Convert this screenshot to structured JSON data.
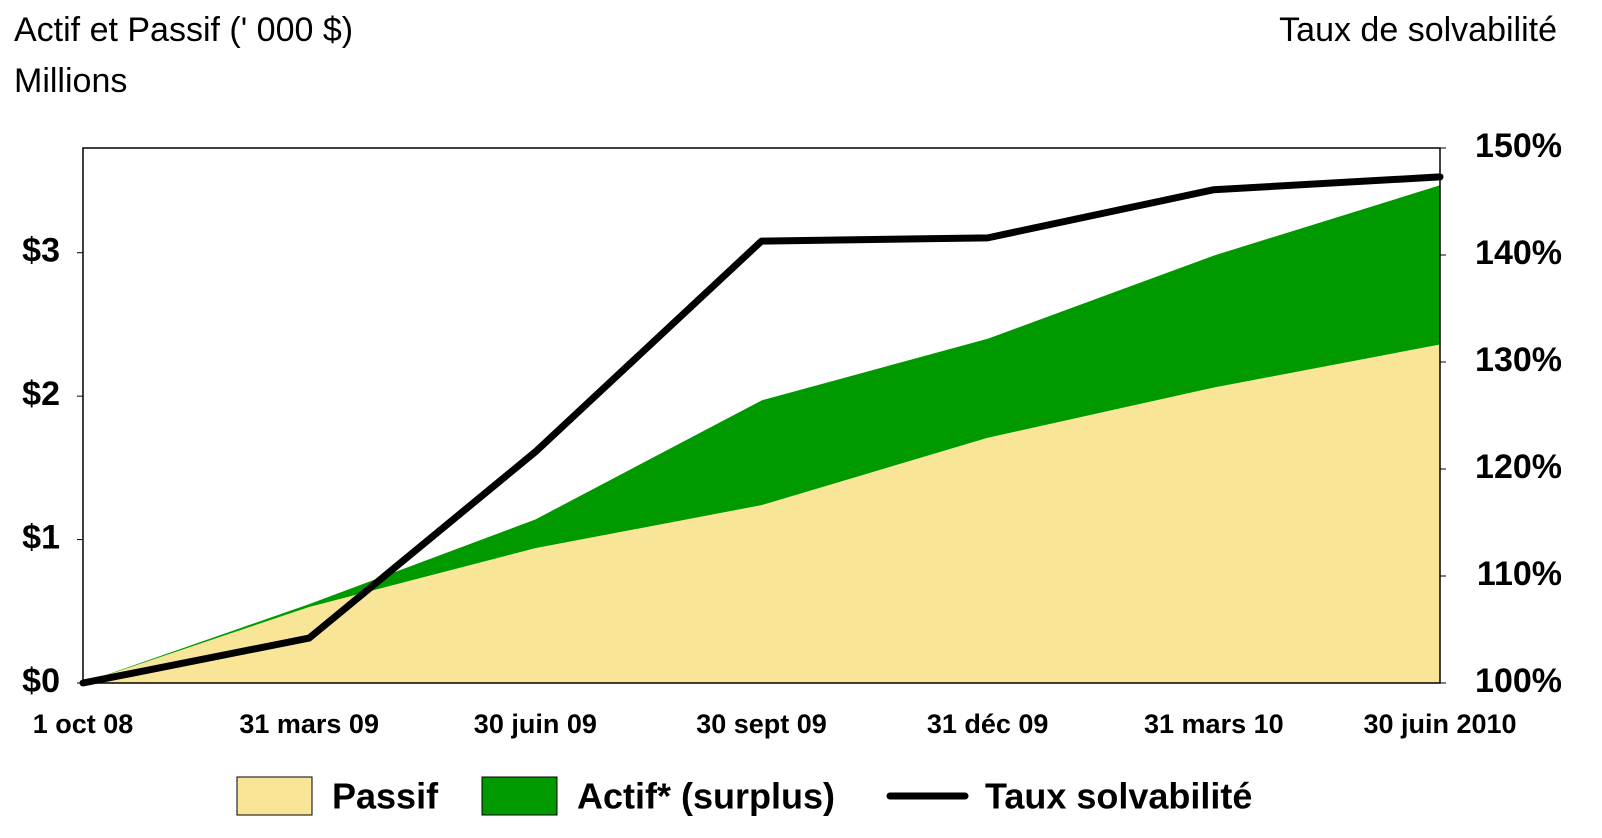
{
  "chart_data": {
    "type": "stacked_area_line",
    "left_axis_title": "Actif et Passif (' 000 $)",
    "left_axis_subtitle": "Millions",
    "right_axis_title": "Taux de solvabilité",
    "categories": [
      "1 oct 08",
      "31 mars 09",
      "30 juin 09",
      "30 sept 09",
      "31 déc 09",
      "31 mars 10",
      "30 juin 2010"
    ],
    "series": [
      {
        "name": "Passif",
        "color": "#f8e597",
        "values": [
          0,
          0.53,
          0.94,
          1.24,
          1.71,
          2.06,
          2.36
        ]
      },
      {
        "name": "Actif* (surplus)",
        "color": "#009900",
        "values": [
          0,
          0.02,
          0.2,
          0.73,
          0.69,
          0.92,
          1.11
        ]
      },
      {
        "name": "Taux solvabilité",
        "color": "#000000",
        "axis": "y2",
        "values": [
          100,
          104.2,
          121.6,
          141.3,
          141.6,
          146.1,
          147.3
        ]
      }
    ],
    "ylim": [
      0,
      3.73
    ],
    "yticks": [
      {
        "value": 0,
        "label": "$0"
      },
      {
        "value": 1,
        "label": "$1"
      },
      {
        "value": 2,
        "label": "$2"
      },
      {
        "value": 3,
        "label": "$3"
      }
    ],
    "y2lim": [
      100,
      150
    ],
    "y2ticks": [
      {
        "value": 100,
        "label": "100%"
      },
      {
        "value": 110,
        "label": "110%"
      },
      {
        "value": 120,
        "label": "120%"
      },
      {
        "value": 130,
        "label": "130%"
      },
      {
        "value": 140,
        "label": "140%"
      },
      {
        "value": 150,
        "label": "150%"
      }
    ]
  }
}
